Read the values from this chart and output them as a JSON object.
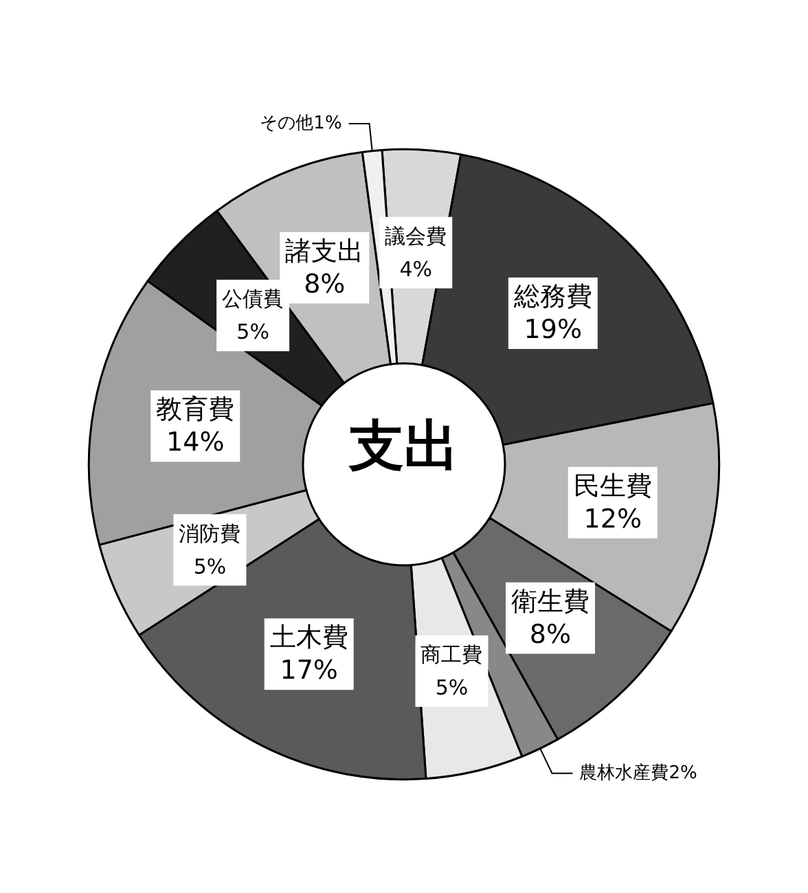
{
  "chart_data": {
    "type": "donut",
    "title": "支出",
    "categories": [
      "議会費",
      "総務費",
      "民生費",
      "衛生費",
      "農林水産費",
      "商工費",
      "土木費",
      "消防費",
      "教育費",
      "公債費",
      "諸支出",
      "その他"
    ],
    "values": [
      4,
      19,
      12,
      8,
      2,
      5,
      17,
      5,
      14,
      5,
      8,
      1
    ],
    "value_labels": [
      "4%",
      "19%",
      "12%",
      "8%",
      "2%",
      "5%",
      "17%",
      "5%",
      "14%",
      "5%",
      "8%",
      "1%"
    ],
    "colors": [
      "#d8d8d8",
      "#3a3a3a",
      "#b8b8b8",
      "#6a6a6a",
      "#888888",
      "#e8e8e8",
      "#5a5a5a",
      "#c8c8c8",
      "#a0a0a0",
      "#202020",
      "#c0c0c0",
      "#f0f0f0"
    ],
    "legend": false
  }
}
